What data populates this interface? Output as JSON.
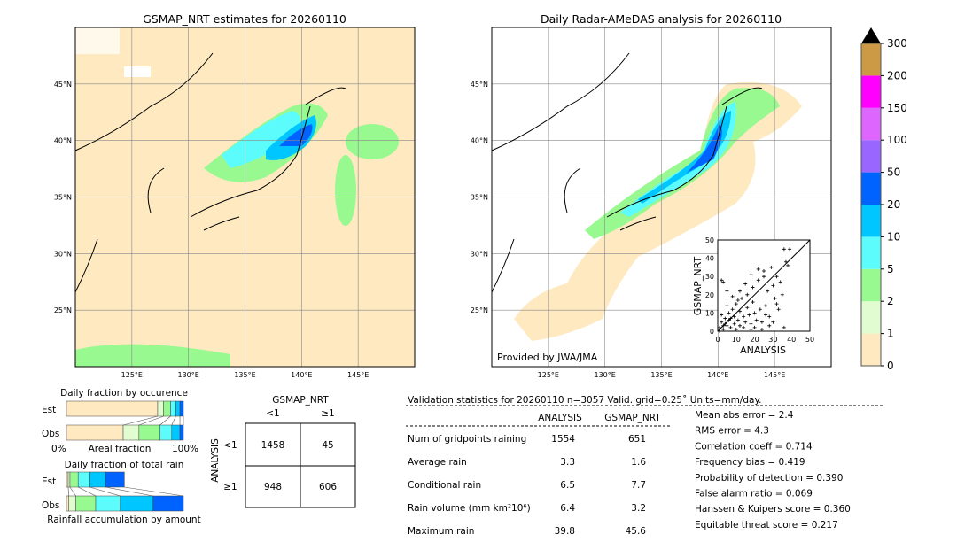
{
  "chart_data": [
    {
      "type": "heatmap",
      "title": "GSMAP_NRT estimates for 20260110",
      "lon_ticks": [
        "125°E",
        "130°E",
        "135°E",
        "140°E",
        "145°E"
      ],
      "lat_ticks": [
        "45°N",
        "40°N",
        "35°N",
        "30°N",
        "25°N"
      ],
      "lon_range": [
        120,
        150
      ],
      "lat_range": [
        20,
        50
      ]
    },
    {
      "type": "heatmap",
      "title": "Daily Radar-AMeDAS analysis for 20260110",
      "lon_ticks": [
        "125°E",
        "130°E",
        "135°E",
        "140°E",
        "145°E"
      ],
      "lat_ticks": [
        "45°N",
        "40°N",
        "35°N",
        "30°N",
        "25°N"
      ],
      "lon_range": [
        120,
        150
      ],
      "lat_range": [
        20,
        50
      ],
      "credit": "Provided by JWA/JMA"
    },
    {
      "type": "scatter",
      "xlabel": "ANALYSIS",
      "ylabel": "GSMAP_NRT",
      "xlim": [
        0,
        50
      ],
      "ylim": [
        0,
        50
      ],
      "ticks": [
        "0",
        "10",
        "20",
        "30",
        "40",
        "50"
      ],
      "points": [
        [
          1,
          2
        ],
        [
          2,
          5
        ],
        [
          3,
          1
        ],
        [
          4,
          7
        ],
        [
          5,
          3
        ],
        [
          6,
          10
        ],
        [
          7,
          2
        ],
        [
          8,
          12
        ],
        [
          9,
          4
        ],
        [
          10,
          15
        ],
        [
          11,
          6
        ],
        [
          12,
          3
        ],
        [
          13,
          18
        ],
        [
          14,
          8
        ],
        [
          15,
          5
        ],
        [
          16,
          20
        ],
        [
          17,
          9
        ],
        [
          18,
          4
        ],
        [
          19,
          24
        ],
        [
          20,
          10
        ],
        [
          21,
          6
        ],
        [
          22,
          28
        ],
        [
          23,
          12
        ],
        [
          24,
          5
        ],
        [
          25,
          33
        ],
        [
          26,
          14
        ],
        [
          27,
          22
        ],
        [
          28,
          8
        ],
        [
          29,
          35
        ],
        [
          30,
          25
        ],
        [
          31,
          18
        ],
        [
          32,
          30
        ],
        [
          33,
          12
        ],
        [
          34,
          27
        ],
        [
          35,
          20
        ],
        [
          36,
          45
        ],
        [
          37,
          38
        ],
        [
          38,
          36
        ],
        [
          39,
          45
        ],
        [
          36,
          2
        ],
        [
          2,
          28
        ],
        [
          3,
          27
        ],
        [
          5,
          22
        ],
        [
          8,
          19
        ],
        [
          12,
          22
        ],
        [
          15,
          26
        ],
        [
          18,
          31
        ],
        [
          22,
          34
        ],
        [
          25,
          30
        ],
        [
          2,
          9
        ],
        [
          4,
          4
        ],
        [
          6,
          6
        ],
        [
          1,
          0
        ],
        [
          3,
          3
        ],
        [
          7,
          7
        ],
        [
          10,
          1
        ],
        [
          14,
          2
        ],
        [
          18,
          1
        ],
        [
          20,
          2
        ],
        [
          24,
          1
        ],
        [
          30,
          5
        ],
        [
          32,
          15
        ],
        [
          26,
          9
        ],
        [
          28,
          3
        ],
        [
          12,
          11
        ],
        [
          16,
          13
        ],
        [
          9,
          8
        ],
        [
          5,
          14
        ],
        [
          11,
          17
        ],
        [
          19,
          16
        ]
      ]
    },
    {
      "type": "bar",
      "title": "Daily fraction by occurence",
      "categories": [
        "Est",
        "Obs"
      ],
      "xlabel": "Areal fraction",
      "xticks": [
        "0%",
        "100%"
      ],
      "series": [
        {
          "name": "0-1",
          "color": "#fee9c0",
          "values": [
            78,
            48.5
          ]
        },
        {
          "name": "1-2",
          "color": "#e0fcd0",
          "values": [
            5,
            13.5
          ]
        },
        {
          "name": "2-5",
          "color": "#99f991",
          "values": [
            6,
            18
          ]
        },
        {
          "name": "5-10",
          "color": "#5dfcfc",
          "values": [
            4.5,
            10
          ]
        },
        {
          "name": "10-20",
          "color": "#00c6ff",
          "values": [
            3.5,
            7
          ]
        },
        {
          "name": "20-50",
          "color": "#0062ff",
          "values": [
            3,
            3
          ]
        }
      ]
    },
    {
      "type": "bar",
      "title": "Daily fraction of total rain",
      "categories": [
        "Est",
        "Obs"
      ],
      "xlabel": "Rainfall accumulation by amount",
      "series": [
        {
          "name": "0-1",
          "color": "#fee9c0",
          "values": [
            1.5,
            2
          ]
        },
        {
          "name": "1-2",
          "color": "#e0fcd0",
          "values": [
            1.5,
            6
          ]
        },
        {
          "name": "2-5",
          "color": "#99f991",
          "values": [
            7,
            17
          ]
        },
        {
          "name": "5-10",
          "color": "#5dfcfc",
          "values": [
            10,
            21
          ]
        },
        {
          "name": "10-20",
          "color": "#00c6ff",
          "values": [
            13.5,
            28
          ]
        },
        {
          "name": "20-50",
          "color": "#0062ff",
          "values": [
            16,
            26
          ]
        }
      ]
    },
    {
      "type": "table",
      "title": "GSMAP_NRT",
      "row_title": "ANALYSIS",
      "col_labels": [
        "<1",
        "≥1"
      ],
      "row_labels": [
        "<1",
        "≥1"
      ],
      "cells": [
        [
          "1458",
          "45"
        ],
        [
          "948",
          "606"
        ]
      ]
    }
  ],
  "colorbar": {
    "labels": [
      "0",
      "1",
      "2",
      "5",
      "10",
      "20",
      "50",
      "100",
      "150",
      "200",
      "300"
    ],
    "colors": [
      "#fee9c0",
      "#e0fcd0",
      "#99f991",
      "#5dfcfc",
      "#00c6ff",
      "#0062ff",
      "#9966ff",
      "#dd66ff",
      "#ff00ff",
      "#cc9944"
    ]
  },
  "stats": {
    "header": "Validation statistics for 20260110  n=3057 Valid. grid=0.25˚ Units=mm/day.",
    "col1": "ANALYSIS",
    "col2": "GSMAP_NRT",
    "rows": [
      {
        "label": "Num of gridpoints raining",
        "a": "1554",
        "g": "651"
      },
      {
        "label": "Average rain",
        "a": "3.3",
        "g": "1.6"
      },
      {
        "label": "Conditional rain",
        "a": "6.5",
        "g": "7.7"
      },
      {
        "label": "Rain volume (mm km²10⁶)",
        "a": "6.4",
        "g": "3.2"
      },
      {
        "label": "Maximum rain",
        "a": "39.8",
        "g": "45.6"
      }
    ],
    "scores": [
      "Mean abs error =    2.4",
      "RMS error =    4.3",
      "Correlation coeff =  0.714",
      "Frequency bias =  0.419",
      "Probability of detection =  0.390",
      "False alarm ratio =  0.069",
      "Hanssen & Kuipers score =  0.360",
      "Equitable threat score =  0.217"
    ]
  }
}
